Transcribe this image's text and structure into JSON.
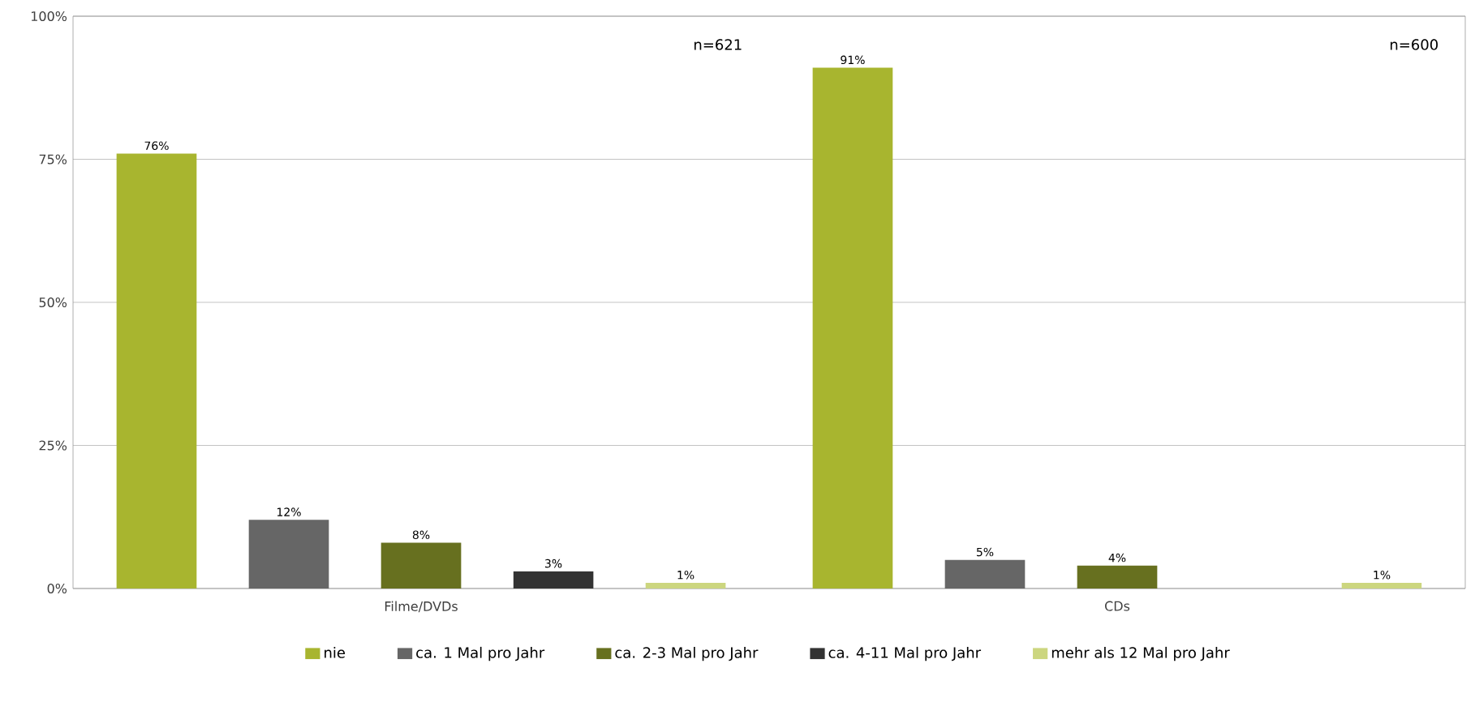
{
  "chart_data": {
    "type": "bar",
    "categories": [
      "Filme/DVDs",
      "CDs"
    ],
    "series": [
      {
        "name": "nie",
        "color": "#a8b52f",
        "values": [
          76,
          91
        ],
        "value_labels": [
          "76%",
          "91%"
        ]
      },
      {
        "name": "ca. 1 Mal pro Jahr",
        "color": "#666666",
        "values": [
          12,
          5
        ],
        "value_labels": [
          "12%",
          "5%"
        ]
      },
      {
        "name": "ca. 2-3 Mal pro Jahr",
        "color": "#67701f",
        "values": [
          8,
          4
        ],
        "value_labels": [
          "8%",
          "4%"
        ]
      },
      {
        "name": "ca. 4-11 Mal pro Jahr",
        "color": "#333333",
        "values": [
          3,
          null
        ],
        "value_labels": [
          "3%",
          null
        ]
      },
      {
        "name": "mehr als 12 Mal pro Jahr",
        "color": "#ccd67f",
        "values": [
          1,
          1
        ],
        "value_labels": [
          "1%",
          "1%"
        ]
      }
    ],
    "ylim": [
      0,
      100
    ],
    "yticks": [
      {
        "value": 0,
        "label": "0%"
      },
      {
        "value": 25,
        "label": "25%"
      },
      {
        "value": 50,
        "label": "50%"
      },
      {
        "value": 75,
        "label": "75%"
      },
      {
        "value": 100,
        "label": "100%"
      }
    ],
    "grid": "y",
    "legend": "bottom",
    "annotations": [
      "n=621",
      "n=600"
    ]
  }
}
